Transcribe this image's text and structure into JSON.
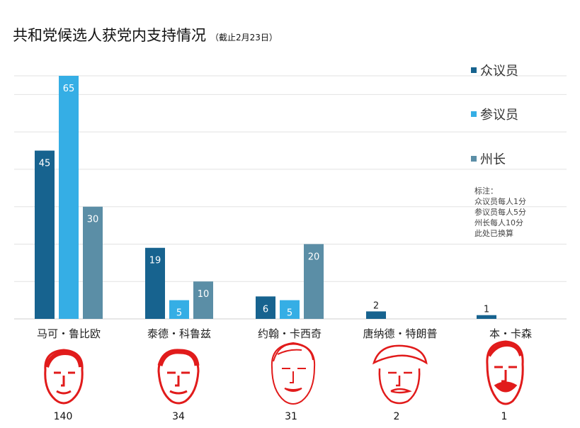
{
  "title": "共和党候选人获党内支持情况",
  "subtitle": "（截止2月23日）",
  "colors": {
    "representatives": "#17638f",
    "senators": "#35aee5",
    "governors": "#5b8ea6",
    "grid": "#e2e2e2",
    "face": "#e11b1b"
  },
  "note": {
    "lines": [
      "标注：",
      "众议员每人1分",
      "参议员每人5分",
      "州长每人10分",
      "此处已换算"
    ]
  },
  "faces": [
    "rubio-face-icon",
    "cruz-face-icon",
    "kasich-face-icon",
    "trump-face-icon",
    "carson-face-icon"
  ],
  "chart_data": {
    "type": "bar",
    "categories": [
      "马可・鲁比欧",
      "泰德・科鲁兹",
      "约翰・卡西奇",
      "唐纳德・特朗普",
      "本・卡森"
    ],
    "series": [
      {
        "name": "众议员",
        "values": [
          45,
          19,
          6,
          2,
          1
        ]
      },
      {
        "name": "参议员",
        "values": [
          65,
          5,
          5,
          0,
          0
        ]
      },
      {
        "name": "州长",
        "values": [
          30,
          10,
          20,
          0,
          0
        ]
      }
    ],
    "totals": [
      "140",
      "34",
      "31",
      "2",
      "1"
    ],
    "ylim": [
      0,
      65
    ],
    "grid": true,
    "legend": "top-right"
  }
}
